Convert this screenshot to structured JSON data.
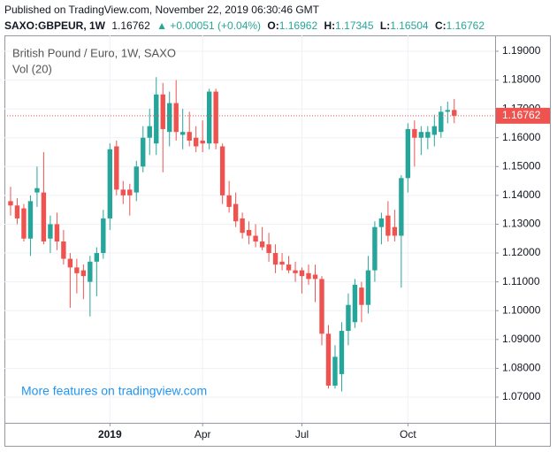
{
  "header": {
    "published": "Published on TradingView.com, November 22, 2019 06:30:46 GMT",
    "symbol": "SAXO:GBPEUR, 1W",
    "change": "▲ +0.00051 (+0.04%)",
    "o_label": "O:",
    "h_label": "H:",
    "l_label": "L:",
    "c_label": "C:"
  },
  "chart_data": {
    "type": "candlestick",
    "legend_title": "British Pound / Euro, 1W, SAXO",
    "indicator": "Vol (20)",
    "watermark": "More features on tradingview.com",
    "up_color": "#26a69a",
    "down_color": "#ef5350",
    "grid": true,
    "xlim": [
      -0.93,
      73.17
    ],
    "ylim": [
      1.0611,
      1.1955
    ],
    "xticks": [
      {
        "value": 15,
        "label": "2019"
      },
      {
        "value": 29,
        "label": "Apr"
      },
      {
        "value": 44,
        "label": "Jul"
      },
      {
        "value": 60,
        "label": "Oct"
      }
    ],
    "yticks": [
      {
        "value": 1.07,
        "label": "1.07000"
      },
      {
        "value": 1.08,
        "label": "1.08000"
      },
      {
        "value": 1.09,
        "label": "1.09000"
      },
      {
        "value": 1.1,
        "label": "1.10000"
      },
      {
        "value": 1.11,
        "label": "1.11000"
      },
      {
        "value": 1.12,
        "label": "1.12000"
      },
      {
        "value": 1.13,
        "label": "1.13000"
      },
      {
        "value": 1.14,
        "label": "1.14000"
      },
      {
        "value": 1.15,
        "label": "1.15000"
      },
      {
        "value": 1.16,
        "label": "1.16000"
      },
      {
        "value": 1.17,
        "label": "1.17000"
      },
      {
        "value": 1.18,
        "label": "1.18000"
      },
      {
        "value": 1.19,
        "label": "1.19000"
      }
    ],
    "candles": [
      [
        1.138,
        1.143,
        1.133,
        1.1365
      ],
      [
        1.1365,
        1.139,
        1.13,
        1.132
      ],
      [
        1.1355,
        1.137,
        1.124,
        1.125
      ],
      [
        1.125,
        1.14,
        1.119,
        1.138
      ],
      [
        1.141,
        1.15,
        1.136,
        1.1425
      ],
      [
        1.141,
        1.155,
        1.123,
        1.124
      ],
      [
        1.125,
        1.133,
        1.12,
        1.13
      ],
      [
        1.13,
        1.134,
        1.121,
        1.124
      ],
      [
        1.124,
        1.128,
        1.116,
        1.118
      ],
      [
        1.118,
        1.12,
        1.101,
        1.115
      ],
      [
        1.115,
        1.118,
        1.106,
        1.113
      ],
      [
        1.114,
        1.116,
        1.104,
        1.112
      ],
      [
        1.11,
        1.119,
        1.098,
        1.117
      ],
      [
        1.117,
        1.122,
        1.105,
        1.12
      ],
      [
        1.12,
        1.135,
        1.118,
        1.132
      ],
      [
        1.132,
        1.158,
        1.128,
        1.156
      ],
      [
        1.157,
        1.159,
        1.14,
        1.142
      ],
      [
        1.142,
        1.145,
        1.137,
        1.14
      ],
      [
        1.142,
        1.144,
        1.133,
        1.14
      ],
      [
        1.141,
        1.152,
        1.138,
        1.15
      ],
      [
        1.15,
        1.164,
        1.148,
        1.16
      ],
      [
        1.16,
        1.17,
        1.154,
        1.164
      ],
      [
        1.158,
        1.181,
        1.154,
        1.175
      ],
      [
        1.175,
        1.179,
        1.148,
        1.163
      ],
      [
        1.162,
        1.176,
        1.157,
        1.172
      ],
      [
        1.172,
        1.18,
        1.159,
        1.162
      ],
      [
        1.161,
        1.17,
        1.156,
        1.162
      ],
      [
        1.162,
        1.169,
        1.157,
        1.159
      ],
      [
        1.16,
        1.164,
        1.155,
        1.157
      ],
      [
        1.159,
        1.166,
        1.155,
        1.158
      ],
      [
        1.158,
        1.177,
        1.156,
        1.176
      ],
      [
        1.176,
        1.177,
        1.156,
        1.158
      ],
      [
        1.157,
        1.158,
        1.137,
        1.14
      ],
      [
        1.14,
        1.145,
        1.134,
        1.136
      ],
      [
        1.137,
        1.141,
        1.129,
        1.131
      ],
      [
        1.132,
        1.134,
        1.125,
        1.127
      ],
      [
        1.128,
        1.131,
        1.123,
        1.126
      ],
      [
        1.126,
        1.13,
        1.122,
        1.124
      ],
      [
        1.124,
        1.129,
        1.121,
        1.122
      ],
      [
        1.123,
        1.127,
        1.117,
        1.12
      ],
      [
        1.12,
        1.123,
        1.113,
        1.116
      ],
      [
        1.117,
        1.12,
        1.114,
        1.116
      ],
      [
        1.116,
        1.119,
        1.113,
        1.114
      ],
      [
        1.114,
        1.117,
        1.11,
        1.113
      ],
      [
        1.114,
        1.115,
        1.106,
        1.112
      ],
      [
        1.113,
        1.116,
        1.109,
        1.111
      ],
      [
        1.1125,
        1.116,
        1.103,
        1.111
      ],
      [
        1.111,
        1.112,
        1.088,
        1.092
      ],
      [
        1.092,
        1.095,
        1.073,
        1.074
      ],
      [
        1.074,
        1.088,
        1.073,
        1.084
      ],
      [
        1.078,
        1.096,
        1.072,
        1.093
      ],
      [
        1.093,
        1.106,
        1.088,
        1.102
      ],
      [
        1.096,
        1.111,
        1.094,
        1.109
      ],
      [
        1.108,
        1.11,
        1.096,
        1.102
      ],
      [
        1.102,
        1.119,
        1.099,
        1.114
      ],
      [
        1.114,
        1.131,
        1.11,
        1.129
      ],
      [
        1.129,
        1.134,
        1.123,
        1.132
      ],
      [
        1.133,
        1.138,
        1.124,
        1.126
      ],
      [
        1.129,
        1.135,
        1.124,
        1.126
      ],
      [
        1.126,
        1.147,
        1.108,
        1.146
      ],
      [
        1.146,
        1.165,
        1.141,
        1.163
      ],
      [
        1.163,
        1.166,
        1.15,
        1.16
      ],
      [
        1.16,
        1.164,
        1.154,
        1.162
      ],
      [
        1.16,
        1.164,
        1.156,
        1.162
      ],
      [
        1.161,
        1.168,
        1.157,
        1.164
      ],
      [
        1.162,
        1.171,
        1.16,
        1.169
      ],
      [
        1.169,
        1.1725,
        1.165,
        1.1696
      ],
      [
        1.16962,
        1.17345,
        1.16504,
        1.16762
      ]
    ]
  }
}
